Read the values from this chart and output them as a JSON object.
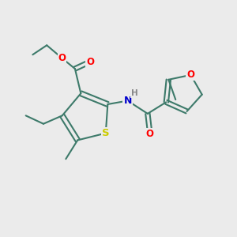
{
  "bg_color": "#ebebeb",
  "bond_color": "#3d7a6a",
  "bond_width": 1.5,
  "atom_colors": {
    "S": "#cccc00",
    "O": "#ff0000",
    "N": "#0000cc",
    "H": "#888888"
  },
  "font_size": 8.5,
  "xlim": [
    0,
    10
  ],
  "ylim": [
    0,
    10
  ]
}
